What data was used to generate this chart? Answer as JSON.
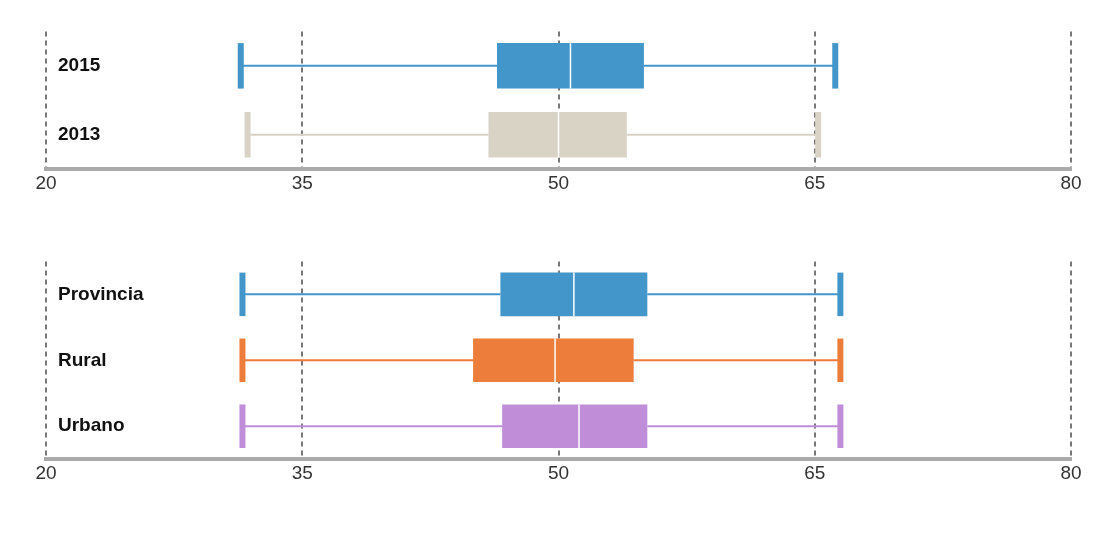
{
  "chart_data": [
    {
      "type": "box",
      "orientation": "horizontal",
      "categories": [
        "2015",
        "2013"
      ],
      "colors": [
        "#4396c9",
        "#d9d3c5"
      ],
      "boxes": [
        {
          "low": 31.4,
          "q1": 46.4,
          "median": 50.7,
          "q3": 55.0,
          "high": 66.2
        },
        {
          "low": 31.8,
          "q1": 45.9,
          "median": 50.0,
          "q3": 54.0,
          "high": 65.2
        }
      ],
      "xlim": [
        20,
        80
      ],
      "xticks": [
        20,
        35,
        50,
        65,
        80
      ],
      "grid": "x",
      "legend": false
    },
    {
      "type": "box",
      "orientation": "horizontal",
      "categories": [
        "Provincia",
        "Rural",
        "Urbano"
      ],
      "colors": [
        "#4396c9",
        "#ed7d3a",
        "#c08dd8"
      ],
      "boxes": [
        {
          "low": 31.5,
          "q1": 46.6,
          "median": 50.9,
          "q3": 55.2,
          "high": 66.5
        },
        {
          "low": 31.5,
          "q1": 45.0,
          "median": 49.8,
          "q3": 54.4,
          "high": 66.5
        },
        {
          "low": 31.5,
          "q1": 46.7,
          "median": 51.2,
          "q3": 55.2,
          "high": 66.5
        }
      ],
      "xlim": [
        20,
        80
      ],
      "xticks": [
        20,
        35,
        50,
        65,
        80
      ],
      "grid": "x",
      "legend": false
    }
  ]
}
